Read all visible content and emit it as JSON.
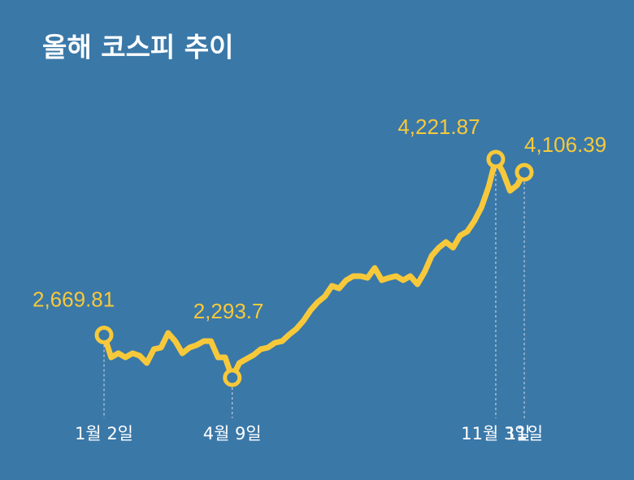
{
  "chart_data": {
    "type": "line",
    "title": "올해 코스피 추이",
    "color": "#f7c93a",
    "categories": [
      "1월 2일",
      null,
      null,
      null,
      null,
      null,
      null,
      null,
      null,
      null,
      null,
      null,
      null,
      null,
      null,
      null,
      null,
      null,
      "4월 9일",
      null,
      null,
      null,
      null,
      null,
      null,
      null,
      null,
      null,
      null,
      null,
      null,
      null,
      null,
      null,
      null,
      null,
      null,
      null,
      null,
      null,
      null,
      null,
      null,
      null,
      null,
      null,
      null,
      null,
      null,
      null,
      null,
      null,
      null,
      null,
      null,
      "11월 3일",
      null,
      null,
      null,
      "11일"
    ],
    "values": [
      2669.81,
      2473,
      2509,
      2473,
      2509,
      2488,
      2423,
      2545,
      2559,
      2688,
      2616,
      2509,
      2559,
      2581,
      2616,
      2616,
      2473,
      2473,
      2293.7,
      2423,
      2459,
      2494,
      2545,
      2559,
      2602,
      2616,
      2674,
      2724,
      2796,
      2889,
      2960,
      3011,
      3104,
      3082,
      3154,
      3190,
      3190,
      3175,
      3262,
      3154,
      3175,
      3190,
      3154,
      3190,
      3118,
      3226,
      3369,
      3441,
      3491,
      3441,
      3548,
      3584,
      3677,
      3799,
      3979,
      4221.87,
      4108,
      3943,
      3993,
      4106.39
    ],
    "value_labels": [
      "2,669.81",
      null,
      null,
      null,
      null,
      null,
      null,
      null,
      null,
      null,
      null,
      null,
      null,
      null,
      null,
      null,
      null,
      null,
      "2,293.7",
      null,
      null,
      null,
      null,
      null,
      null,
      null,
      null,
      null,
      null,
      null,
      null,
      null,
      null,
      null,
      null,
      null,
      null,
      null,
      null,
      null,
      null,
      null,
      null,
      null,
      null,
      null,
      null,
      null,
      null,
      null,
      null,
      null,
      null,
      null,
      null,
      "4,221.87",
      null,
      null,
      null,
      "4,106.39"
    ]
  }
}
